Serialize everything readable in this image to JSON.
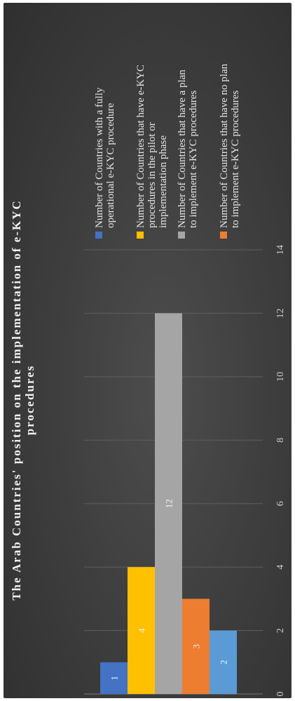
{
  "chart_data": {
    "type": "bar",
    "orientation": "vertical-rotated-90",
    "title": "The Arab Countries' position on the implementation of e-KYC procedures",
    "title_lines": [
      "The Arab Countries' position on the implementation of e-KYC",
      "procedures"
    ],
    "xlim": [
      0,
      14
    ],
    "ticks": [
      0,
      2,
      4,
      6,
      8,
      10,
      12,
      14
    ],
    "grid": true,
    "legend_placement": "right",
    "series": [
      {
        "name": "Number of Countries with a fully operational e-KYC procedure",
        "legend_lines": [
          "Number of Countries with a fully",
          "operational e-KYC procedure"
        ],
        "value": 1,
        "color": "#4472C4"
      },
      {
        "name": "Number of Countries that have e-KYC procedures in the pilot or implementation phase",
        "legend_lines": [
          "Number of Countries that have e-KYC",
          "procedures in the pilot or",
          "implementation phase"
        ],
        "value": 4,
        "color": "#FFC000"
      },
      {
        "name": "Number of Countries that have a plan to implement e-KYC procedures",
        "legend_lines": [
          "Number of Countries that have a plan",
          "to implement e-KYC procedures"
        ],
        "value": 12,
        "color": "#A5A5A5"
      },
      {
        "name": "Number of Countries that have no plan to implement e-KYC procedures",
        "legend_lines": [
          "Number of Countries that have no plan",
          "to implement e-KYC procedures"
        ],
        "value": 3,
        "color": "#ED7D31"
      },
      {
        "name": "",
        "value": 2,
        "color": "#5B9BD5"
      }
    ]
  }
}
